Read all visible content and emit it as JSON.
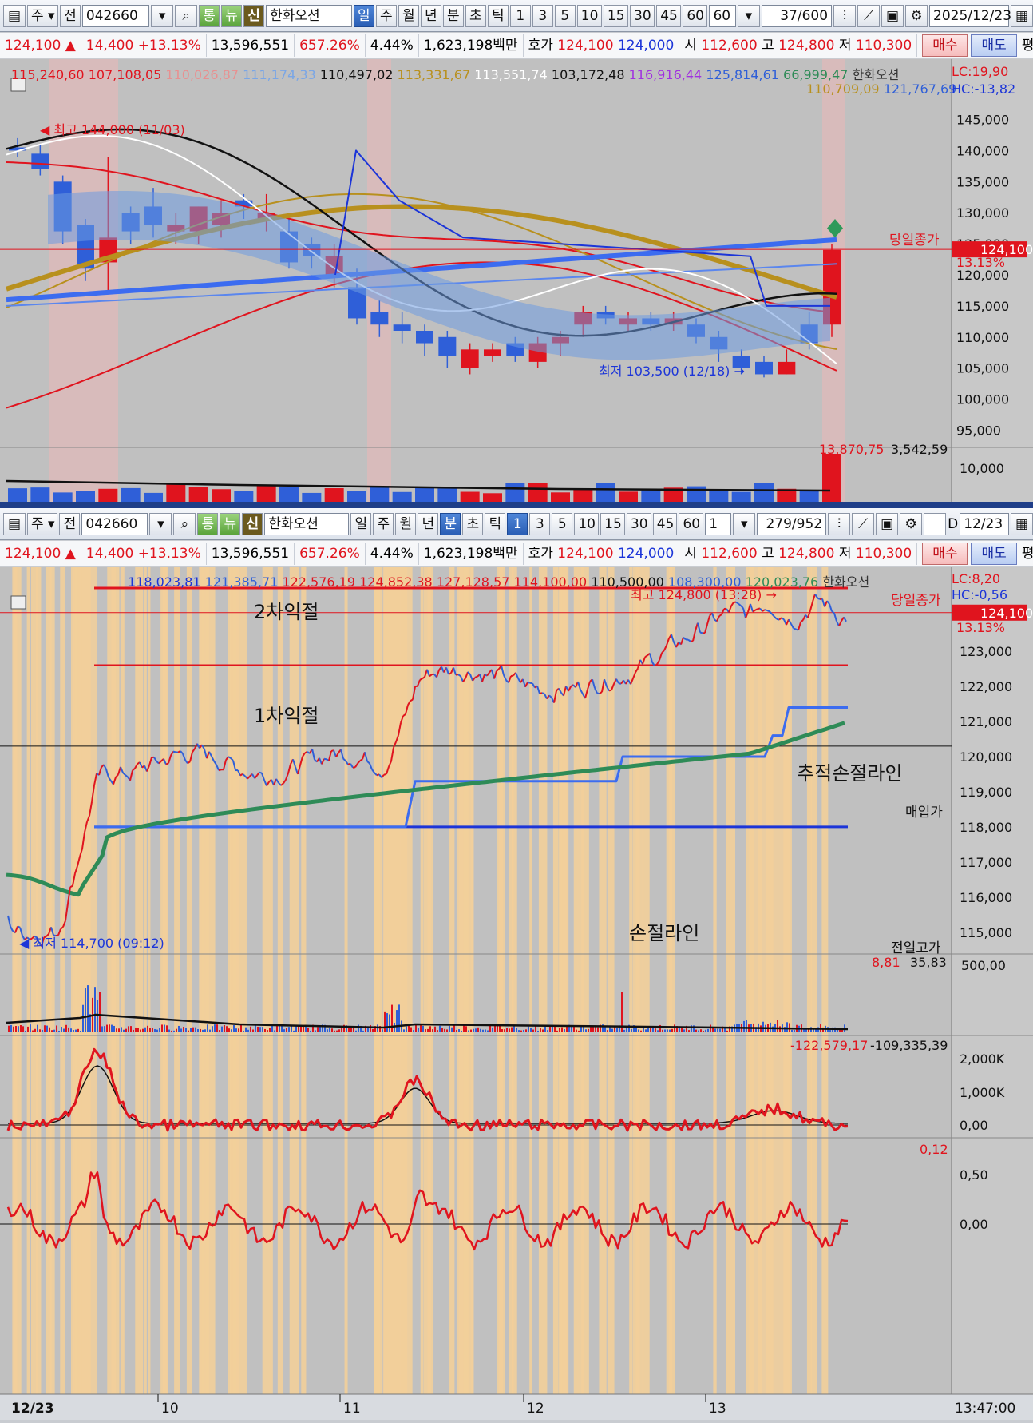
{
  "top": {
    "toolbar": {
      "type_btn": "주",
      "prev_btn": "전",
      "code": "042660",
      "t1": "통",
      "t2": "뉴",
      "shin": "신",
      "name": "한화오션",
      "periods": [
        "일",
        "주",
        "월",
        "년",
        "분",
        "초",
        "틱"
      ],
      "active_period": "일",
      "nums": [
        "1",
        "3",
        "5",
        "10",
        "15",
        "30",
        "45",
        "60"
      ],
      "interval": "60",
      "count": "37",
      "count_total": "/600",
      "date": "2025/12/23"
    },
    "quote": {
      "price": "124,100",
      "change": "14,400",
      "pct": "+13.13%",
      "volume": "13,596,551",
      "vol_ratio": "657.26%",
      "turnover": "4.44%",
      "amount": "1,623,198백만",
      "hoga_label": "호가",
      "ask": "124,100",
      "bid": "124,000",
      "open_label": "시",
      "open": "112,600",
      "high_label": "고",
      "high": "124,800",
      "low_label": "저",
      "low": "110,300",
      "buy": "매수",
      "sell": "매도",
      "eval": "평"
    },
    "ma_legend": [
      "115,240,60",
      "107,108,05",
      "110,026,87",
      "111,174,33",
      "110,497,02",
      "113,331,67",
      "113,551,74",
      "103,172,48",
      "116,916,44",
      "125,814,61",
      "66,999,47"
    ],
    "ma_legend2": [
      "110,709,09",
      "121,767,69"
    ],
    "stock_label": "한화오션",
    "lc": "LC:19,90",
    "hc": "HC:-13,82",
    "high_marker": "최고 144,000 (11/03)",
    "low_marker": "최저 103,500 (12/18)",
    "close_label": "당일종가",
    "price_tag": "124,100",
    "price_pct": "13.13%",
    "y_ticks": [
      "145,000",
      "140,000",
      "135,000",
      "130,000",
      "125,000",
      "120,000",
      "115,000",
      "110,000",
      "105,000",
      "100,000",
      "95,000"
    ],
    "vol_legend": [
      "13,870,75",
      "3,542,59"
    ],
    "vol_tick": "10,000"
  },
  "bottom": {
    "toolbar": {
      "type_btn": "주",
      "prev_btn": "전",
      "code": "042660",
      "t1": "통",
      "t2": "뉴",
      "shin": "신",
      "name": "한화오션",
      "periods": [
        "일",
        "주",
        "월",
        "년",
        "분",
        "초",
        "틱"
      ],
      "active_period": "분",
      "nums": [
        "1",
        "3",
        "5",
        "10",
        "15",
        "30",
        "45",
        "60"
      ],
      "interval": "1",
      "count": "279",
      "count_total": "/952",
      "d_label": "D",
      "date": "12/23"
    },
    "quote": {
      "price": "124,100",
      "change": "14,400",
      "pct": "+13.13%",
      "volume": "13,596,551",
      "vol_ratio": "657.26%",
      "turnover": "4.44%",
      "amount": "1,623,198백만",
      "hoga_label": "호가",
      "ask": "124,100",
      "bid": "124,000",
      "open_label": "시",
      "open": "112,600",
      "high_label": "고",
      "high": "124,800",
      "low_label": "저",
      "low": "110,300",
      "buy": "매수",
      "sell": "매도",
      "eval": "평"
    },
    "ma_legend": [
      "118,023,81",
      "121,385,71",
      "122,576,19",
      "124,852,38",
      "127,128,57",
      "114,100,00",
      "110,500,00",
      "108,300,00",
      "120,023,76"
    ],
    "stock_label": "한화오션",
    "lc": "LC:8,20",
    "hc": "HC:-0,56",
    "high_marker": "최고 124,800 (13:28)",
    "low_marker": "최저 114,700 (09:12)",
    "close_label": "당일종가",
    "price_tag": "124,100",
    "price_pct": "13.13%",
    "annotations": {
      "take_profit_2": "2차익절",
      "take_profit_1": "1차익절",
      "trailing_stop": "추적손절라인",
      "stop_loss": "손절라인",
      "entry": "매입가"
    },
    "y_ticks": [
      "123,000",
      "122,000",
      "121,000",
      "120,000",
      "119,000",
      "118,000",
      "117,000",
      "116,000",
      "115,000"
    ],
    "vol_label": "전일고가",
    "vol_legend": [
      "8,81",
      "35,83"
    ],
    "vol_tick": "500,00",
    "ind1_legend": [
      "-122,579,17",
      "-109,335,39"
    ],
    "ind1_ticks": [
      "2,000K",
      "1,000K",
      "0,00"
    ],
    "ind2_legend": "0,12",
    "ind2_ticks": [
      "0,50",
      "0,00"
    ],
    "x_labels": [
      "12/23",
      "10",
      "11",
      "12",
      "13"
    ],
    "time_label": "13:47:00"
  },
  "colors": {
    "up": "#e0141e",
    "down": "#2f5fd8",
    "gold": "#b8901e",
    "green_line": "#2e8b57",
    "bg": "#c0c0c0"
  }
}
